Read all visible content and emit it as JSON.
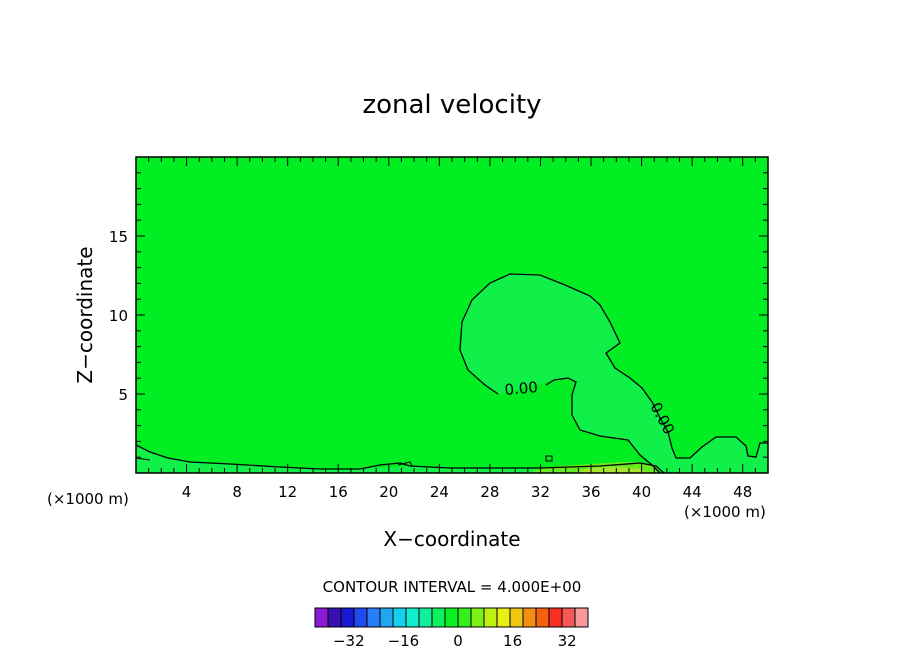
{
  "chart_data": {
    "type": "contour",
    "title": "zonal velocity",
    "xlabel": "X−coordinate",
    "ylabel": "Z−coordinate",
    "x_unit_left": "(×1000 m)",
    "x_unit_right": "(×1000 m)",
    "xlim": [
      0,
      50
    ],
    "ylim": [
      0,
      20
    ],
    "x_ticks": [
      4,
      8,
      12,
      16,
      20,
      24,
      28,
      32,
      36,
      40,
      44,
      48
    ],
    "y_ticks": [
      5,
      10,
      15
    ],
    "background_value_color": "#00ee22",
    "contour_labels": [
      {
        "text": "0.00",
        "x": 30.6,
        "z": 5.1,
        "rotation": -5
      },
      {
        "text": "0.00",
        "x": 41.8,
        "z": 3.0,
        "rotation": 62
      }
    ],
    "contour_interval_text": "CONTOUR INTERVAL = 4.000E+00",
    "colorbar": {
      "ticks": [
        "−32",
        "−16",
        "0",
        "16",
        "32"
      ],
      "tick_values": [
        -32,
        -16,
        0,
        16,
        32
      ],
      "levels": [
        -40,
        -36,
        -32,
        -28,
        -24,
        -20,
        -16,
        -12,
        -8,
        -4,
        0,
        4,
        8,
        12,
        16,
        20,
        24,
        28,
        32,
        36,
        40
      ],
      "colors": [
        "#8a1ad6",
        "#3a10b0",
        "#1818d0",
        "#1f4af0",
        "#2a7df8",
        "#1ea8f2",
        "#13d0ee",
        "#10eecd",
        "#10f09a",
        "#0ef060",
        "#0bef25",
        "#33f01a",
        "#7df015",
        "#bef012",
        "#e8f010",
        "#f0c810",
        "#f39010",
        "#f56010",
        "#f83020",
        "#f85858",
        "#f89898"
      ]
    }
  }
}
